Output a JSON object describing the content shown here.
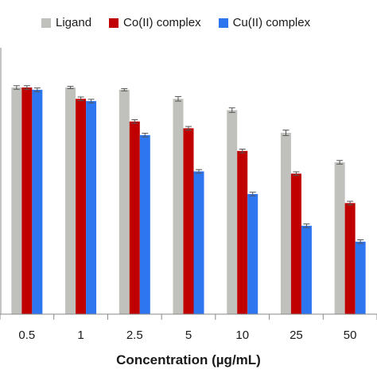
{
  "chart_data": {
    "type": "bar",
    "categories": [
      "0.5",
      "1",
      "2.5",
      "5",
      "10",
      "25",
      "50"
    ],
    "series": [
      {
        "name": "Ligand",
        "color": "#c0c0bc",
        "values": [
          100,
          100,
          99,
          95,
          90,
          80,
          67
        ]
      },
      {
        "name": "Co(II) complex",
        "color": "#c00000",
        "values": [
          100,
          95,
          85,
          82,
          72,
          62,
          49
        ]
      },
      {
        "name": "Cu(II) complex",
        "color": "#2e75f0",
        "values": [
          99,
          94,
          79,
          63,
          53,
          39,
          32
        ]
      }
    ],
    "errors": [
      [
        0.8,
        0.5,
        0.5,
        1.0,
        1.0,
        1.2,
        0.8
      ],
      [
        0.8,
        0.8,
        0.8,
        0.8,
        0.8,
        0.8,
        0.8
      ],
      [
        0.8,
        0.8,
        0.8,
        0.8,
        0.8,
        0.8,
        0.8
      ]
    ],
    "xlabel": "Concentration (µg/mL)",
    "ylabel": "",
    "ylim": [
      0,
      115
    ],
    "grid": false,
    "legend": "top"
  }
}
